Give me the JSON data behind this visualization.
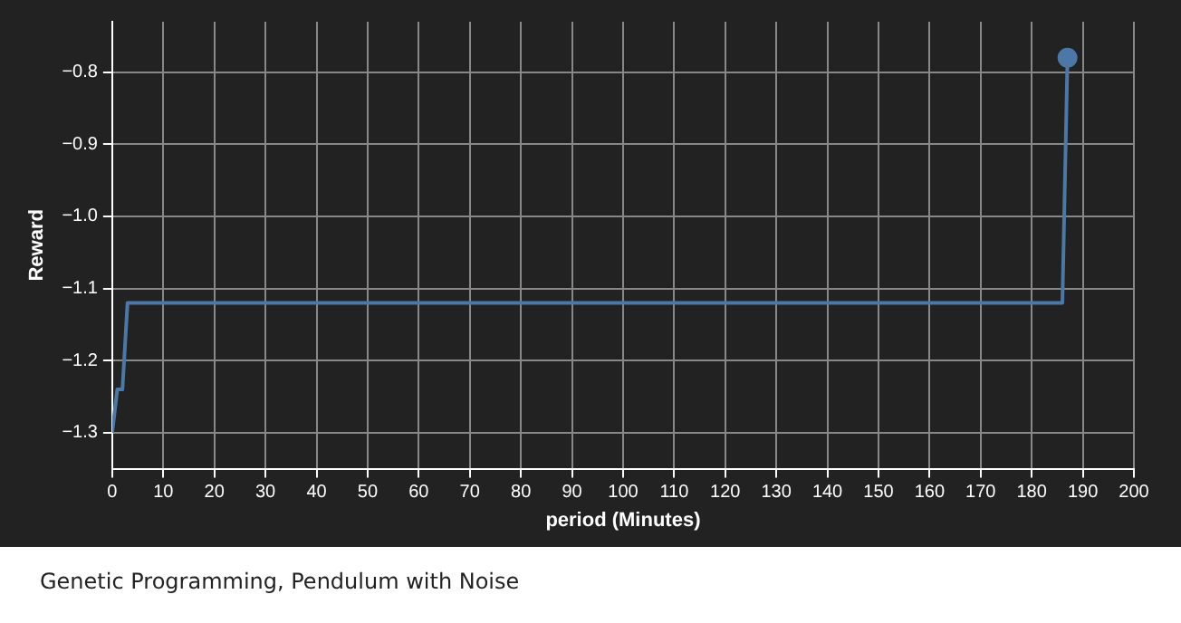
{
  "chart_data": {
    "type": "line",
    "xlabel": "period (Minutes)",
    "ylabel": "Reward",
    "series": [
      {
        "color": "#4c78a8",
        "marker": "none",
        "x": [
          0,
          1,
          2,
          3,
          186,
          187
        ],
        "values": [
          -1.3,
          -1.24,
          -1.24,
          -1.12,
          -1.12,
          -0.78
        ]
      },
      {
        "type": "scatter",
        "color": "#4c78a8",
        "marker": "circle",
        "x": [
          187
        ],
        "values": [
          -0.78
        ]
      }
    ],
    "xlim": [
      0,
      200
    ],
    "xticks": [
      0,
      10,
      20,
      30,
      40,
      50,
      60,
      70,
      80,
      90,
      100,
      110,
      120,
      130,
      140,
      150,
      160,
      170,
      180,
      190,
      200
    ],
    "ylim": [
      -1.35,
      -0.73
    ],
    "yticks": [
      {
        "value": -1.3,
        "label": "−1.3"
      },
      {
        "value": -1.2,
        "label": "−1.2"
      },
      {
        "value": -1.1,
        "label": "−1.1"
      },
      {
        "value": -1.0,
        "label": "−1.0"
      },
      {
        "value": -0.9,
        "label": "−0.9"
      },
      {
        "value": -0.8,
        "label": "−0.8"
      }
    ],
    "grid": true,
    "legend": false,
    "line_style": "solid",
    "annotations": [
      "Genetic Programming, Pendulum with Noise"
    ]
  }
}
